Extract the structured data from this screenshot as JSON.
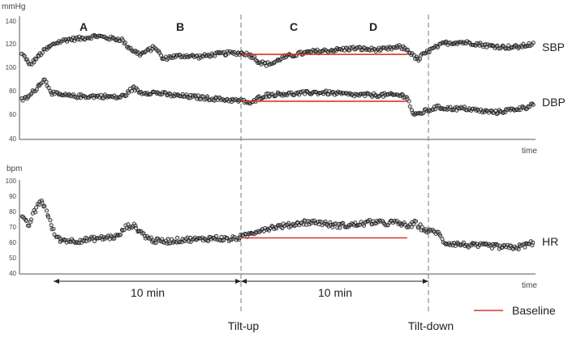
{
  "colors": {
    "marker_stroke": "#1a1a1a",
    "marker_fill": "#9a9a9a",
    "baseline": "#d9352c",
    "axis": "#555555",
    "divider": "#7a7a7a"
  },
  "chart_data": [
    {
      "type": "scatter",
      "title": "",
      "ylabel": "mmHg",
      "xlabel": "time",
      "ylim": [
        40,
        140
      ],
      "yticks": [
        "40",
        "60",
        "80",
        "100",
        "120",
        "140"
      ],
      "grid": false,
      "phase_labels": [
        "A",
        "B",
        "C",
        "D"
      ],
      "series": [
        {
          "name": "SBP",
          "profile": [
            [
              0,
              109
            ],
            [
              1,
              106
            ],
            [
              2,
              100
            ],
            [
              4,
              106
            ],
            [
              6,
              112
            ],
            [
              9,
              118
            ],
            [
              12,
              121
            ],
            [
              16,
              122
            ],
            [
              20,
              124
            ],
            [
              24,
              122
            ],
            [
              27,
              121
            ],
            [
              28,
              117
            ],
            [
              30,
              112
            ],
            [
              32,
              109
            ],
            [
              34,
              112
            ],
            [
              36,
              115
            ],
            [
              38,
              105
            ],
            [
              40,
              107
            ],
            [
              44,
              108
            ],
            [
              48,
              107
            ],
            [
              52,
              109
            ],
            [
              56,
              110
            ],
            [
              60,
              110
            ],
            [
              62,
              108
            ],
            [
              64,
              103
            ],
            [
              66,
              101
            ],
            [
              68,
              102
            ],
            [
              70,
              106
            ],
            [
              74,
              109
            ],
            [
              78,
              111
            ],
            [
              82,
              112
            ],
            [
              86,
              113
            ],
            [
              90,
              114
            ],
            [
              94,
              113
            ],
            [
              98,
              113
            ],
            [
              100,
              114
            ],
            [
              102,
              115
            ],
            [
              104,
              113
            ],
            [
              106,
              107
            ],
            [
              107,
              104
            ],
            [
              108,
              108
            ],
            [
              110,
              112
            ],
            [
              114,
              118
            ],
            [
              118,
              119
            ],
            [
              122,
              118
            ],
            [
              126,
              116
            ],
            [
              130,
              115
            ],
            [
              134,
              115
            ],
            [
              137,
              117
            ],
            [
              138,
              117
            ]
          ],
          "baseline": {
            "value": 109,
            "from": 60,
            "to": 104
          }
        },
        {
          "name": "DBP",
          "profile": [
            [
              0,
              72
            ],
            [
              2,
              75
            ],
            [
              4,
              82
            ],
            [
              6,
              89
            ],
            [
              7,
              84
            ],
            [
              8,
              78
            ],
            [
              10,
              76
            ],
            [
              14,
              75
            ],
            [
              18,
              75
            ],
            [
              22,
              75
            ],
            [
              26,
              74
            ],
            [
              28,
              76
            ],
            [
              30,
              82
            ],
            [
              32,
              78
            ],
            [
              36,
              78
            ],
            [
              40,
              76
            ],
            [
              44,
              75
            ],
            [
              48,
              74
            ],
            [
              52,
              73
            ],
            [
              56,
              72
            ],
            [
              60,
              71
            ],
            [
              62,
              69
            ],
            [
              64,
              74
            ],
            [
              66,
              76
            ],
            [
              70,
              77
            ],
            [
              74,
              77
            ],
            [
              78,
              78
            ],
            [
              82,
              78
            ],
            [
              86,
              77
            ],
            [
              90,
              76
            ],
            [
              94,
              76
            ],
            [
              98,
              76
            ],
            [
              102,
              76
            ],
            [
              104,
              75
            ],
            [
              105,
              65
            ],
            [
              106,
              59
            ],
            [
              108,
              62
            ],
            [
              112,
              66
            ],
            [
              116,
              65
            ],
            [
              120,
              65
            ],
            [
              124,
              63
            ],
            [
              128,
              62
            ],
            [
              132,
              64
            ],
            [
              136,
              66
            ],
            [
              138,
              69
            ]
          ],
          "baseline": {
            "value": 71,
            "from": 60,
            "to": 104
          }
        }
      ]
    },
    {
      "type": "scatter",
      "title": "",
      "ylabel": "bpm",
      "xlabel": "time",
      "ylim": [
        40,
        100
      ],
      "yticks": [
        "40",
        "50",
        "60",
        "70",
        "80",
        "90",
        "100"
      ],
      "grid": false,
      "series": [
        {
          "name": "HR",
          "profile": [
            [
              0,
              76
            ],
            [
              1,
              73
            ],
            [
              2,
              71
            ],
            [
              3,
              78
            ],
            [
              4,
              82
            ],
            [
              5,
              87
            ],
            [
              6,
              84
            ],
            [
              7,
              78
            ],
            [
              8,
              70
            ],
            [
              9,
              65
            ],
            [
              10,
              62
            ],
            [
              14,
              61
            ],
            [
              18,
              62
            ],
            [
              22,
              63
            ],
            [
              26,
              64
            ],
            [
              28,
              70
            ],
            [
              30,
              71
            ],
            [
              32,
              67
            ],
            [
              34,
              63
            ],
            [
              36,
              61
            ],
            [
              40,
              61
            ],
            [
              44,
              62
            ],
            [
              48,
              62
            ],
            [
              52,
              63
            ],
            [
              56,
              62
            ],
            [
              60,
              64
            ],
            [
              62,
              66
            ],
            [
              64,
              68
            ],
            [
              68,
              70
            ],
            [
              72,
              71
            ],
            [
              76,
              73
            ],
            [
              80,
              73
            ],
            [
              84,
              71
            ],
            [
              88,
              71
            ],
            [
              92,
              72
            ],
            [
              94,
              73
            ],
            [
              96,
              73
            ],
            [
              98,
              72
            ],
            [
              100,
              73
            ],
            [
              102,
              72
            ],
            [
              104,
              71
            ],
            [
              105,
              70
            ],
            [
              106,
              73
            ],
            [
              108,
              69
            ],
            [
              110,
              67
            ],
            [
              112,
              67
            ],
            [
              114,
              60
            ],
            [
              118,
              59
            ],
            [
              122,
              58
            ],
            [
              126,
              58
            ],
            [
              130,
              57
            ],
            [
              134,
              57
            ],
            [
              138,
              60
            ]
          ],
          "baseline": {
            "value": 63,
            "from": 60,
            "to": 104
          }
        }
      ]
    }
  ],
  "durations": [
    "10 min",
    "10 min"
  ],
  "events": [
    "Tilt-up",
    "Tilt-down"
  ],
  "legend": {
    "label": "Baseline",
    "placement": "bottom-right"
  }
}
